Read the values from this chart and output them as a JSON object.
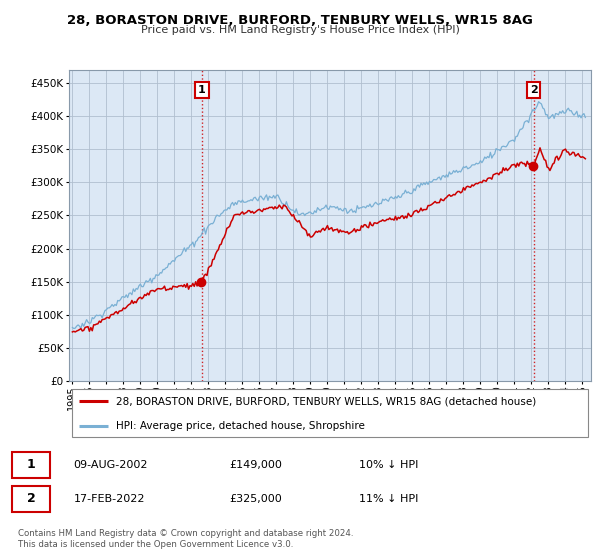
{
  "title": "28, BORASTON DRIVE, BURFORD, TENBURY WELLS, WR15 8AG",
  "subtitle": "Price paid vs. HM Land Registry's House Price Index (HPI)",
  "property_label": "28, BORASTON DRIVE, BURFORD, TENBURY WELLS, WR15 8AG (detached house)",
  "hpi_label": "HPI: Average price, detached house, Shropshire",
  "sale1_date": "09-AUG-2002",
  "sale1_price": 149000,
  "sale1_note": "10% ↓ HPI",
  "sale2_date": "17-FEB-2022",
  "sale2_price": 325000,
  "sale2_note": "11% ↓ HPI",
  "footer": "Contains HM Land Registry data © Crown copyright and database right 2024.\nThis data is licensed under the Open Government Licence v3.0.",
  "sale1_year": 2002.62,
  "sale2_year": 2022.12,
  "property_color": "#cc0000",
  "hpi_color": "#7ab0d4",
  "dashed_color": "#cc0000",
  "background_color": "#ffffff",
  "chart_bg_color": "#dce8f5",
  "grid_color": "#b0bfcf",
  "ylim": [
    0,
    470000
  ],
  "xlim_start": 1994.8,
  "xlim_end": 2025.5
}
